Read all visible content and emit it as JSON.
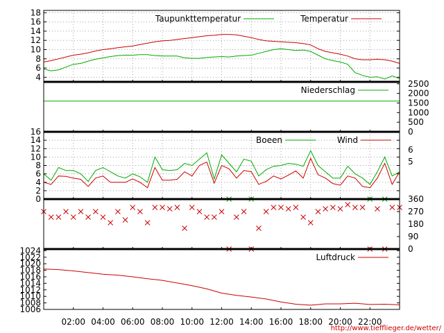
{
  "source_url": "http://www.tiefflieger.de/wetter/",
  "colors": {
    "red": "#cc0000",
    "green": "#00aa00",
    "grid": "#a0a0a0",
    "axis": "#000000"
  },
  "x_axis": {
    "tick_labels": [
      "02:00",
      "04:00",
      "06:00",
      "08:00",
      "10:00",
      "12:00",
      "14:00",
      "16:00",
      "18:00",
      "20:00",
      "22:00"
    ],
    "tick_hours": [
      2,
      4,
      6,
      8,
      10,
      12,
      14,
      16,
      18,
      20,
      22
    ],
    "range_hours": [
      0,
      24
    ]
  },
  "chart_data": [
    {
      "type": "line",
      "panel": "temperature",
      "ylim": [
        3,
        18.5
      ],
      "yticks": [
        4,
        6,
        8,
        10,
        12,
        14,
        16,
        18
      ],
      "legend_placement": "top-right",
      "grid": true,
      "series": [
        {
          "name": "Temperatur",
          "color": "red",
          "x": [
            0,
            0.5,
            1,
            1.5,
            2,
            2.5,
            3,
            3.5,
            4,
            4.5,
            5,
            5.5,
            6,
            6.5,
            7,
            7.5,
            8,
            8.5,
            9,
            9.5,
            10,
            10.5,
            11,
            11.5,
            12,
            12.5,
            13,
            13.5,
            14,
            14.5,
            15,
            15.5,
            16,
            16.5,
            17,
            17.5,
            18,
            18.5,
            19,
            19.5,
            20,
            20.5,
            21,
            21.5,
            22,
            22.5,
            23,
            23.5,
            24
          ],
          "values": [
            7.3,
            7.6,
            8.0,
            8.4,
            8.8,
            9.0,
            9.3,
            9.7,
            10.0,
            10.2,
            10.4,
            10.6,
            10.8,
            11.1,
            11.4,
            11.7,
            11.9,
            12.0,
            12.2,
            12.4,
            12.6,
            12.8,
            13.0,
            13.1,
            13.3,
            13.3,
            13.2,
            12.9,
            12.6,
            12.2,
            11.9,
            11.8,
            11.7,
            11.6,
            11.5,
            11.3,
            11.0,
            10.2,
            9.6,
            9.3,
            9.0,
            8.6,
            8.0,
            7.8,
            7.8,
            7.9,
            7.8,
            7.5,
            7.0
          ]
        },
        {
          "name": "Taupunkttemperatur",
          "color": "green",
          "x": [
            0,
            0.5,
            1,
            1.5,
            2,
            2.5,
            3,
            3.5,
            4,
            4.5,
            5,
            5.5,
            6,
            6.5,
            7,
            7.5,
            8,
            8.5,
            9,
            9.5,
            10,
            10.5,
            11,
            11.5,
            12,
            12.5,
            13,
            13.5,
            14,
            14.5,
            15,
            15.5,
            16,
            16.5,
            17,
            17.5,
            18,
            18.5,
            19,
            19.5,
            20,
            20.5,
            21,
            21.5,
            22,
            22.5,
            23,
            23.5,
            24
          ],
          "values": [
            5.8,
            5.4,
            5.6,
            6.2,
            6.8,
            7.0,
            7.5,
            7.9,
            8.2,
            8.5,
            8.7,
            8.8,
            8.8,
            8.9,
            8.9,
            8.7,
            8.6,
            8.6,
            8.6,
            8.2,
            8.1,
            8.1,
            8.3,
            8.4,
            8.5,
            8.4,
            8.6,
            8.7,
            8.8,
            9.2,
            9.6,
            10.0,
            10.2,
            10.0,
            9.8,
            9.9,
            9.6,
            8.8,
            8.0,
            7.6,
            7.3,
            6.8,
            5.0,
            4.4,
            4.0,
            4.1,
            3.6,
            4.3,
            3.7
          ]
        }
      ]
    },
    {
      "type": "line",
      "panel": "precipitation",
      "ylim": [
        0,
        2600
      ],
      "yticks": [
        0,
        500,
        1000,
        1500,
        2000,
        2500
      ],
      "legend_placement": "top-right",
      "series": [
        {
          "name": "Niederschlag",
          "color": "green",
          "x": [
            0,
            24
          ],
          "values": [
            1600,
            1600
          ]
        }
      ]
    },
    {
      "type": "line",
      "panel": "wind",
      "ylim": [
        0,
        16
      ],
      "yticks": [
        0,
        2,
        4,
        6,
        8,
        10,
        12,
        14,
        16
      ],
      "right_tick_labels": [
        "6",
        "5"
      ],
      "legend_placement": "top-right",
      "grid": true,
      "series": [
        {
          "name": "Wind",
          "color": "red",
          "x": [
            0,
            0.5,
            1,
            1.5,
            2,
            2.5,
            3,
            3.5,
            4,
            4.5,
            5,
            5.5,
            6,
            6.5,
            7,
            7.5,
            8,
            8.5,
            9,
            9.5,
            10,
            10.5,
            11,
            11.5,
            12,
            12.5,
            13,
            13.5,
            14,
            14.5,
            15,
            15.5,
            16,
            16.5,
            17,
            17.5,
            18,
            18.5,
            19,
            19.5,
            20,
            20.5,
            21,
            21.5,
            22,
            22.5,
            23,
            23.5,
            24
          ],
          "values": [
            4.0,
            3.5,
            5.5,
            5.4,
            5.0,
            4.7,
            3.0,
            5.0,
            5.5,
            4.0,
            4.0,
            4.0,
            4.8,
            4.0,
            2.7,
            7.5,
            4.5,
            4.5,
            4.7,
            6.5,
            5.5,
            8.0,
            8.8,
            3.8,
            8.0,
            7.2,
            5.0,
            6.8,
            6.5,
            3.5,
            4.2,
            5.5,
            4.8,
            5.7,
            6.7,
            5.0,
            9.7,
            5.8,
            5.0,
            3.7,
            3.3,
            5.5,
            5.0,
            3.0,
            2.7,
            5.0,
            8.5,
            3.5,
            6.5
          ]
        },
        {
          "name": "Boeen",
          "color": "green",
          "x": [
            0,
            0.5,
            1,
            1.5,
            2,
            2.5,
            3,
            3.5,
            4,
            4.5,
            5,
            5.5,
            6,
            6.5,
            7,
            7.5,
            8,
            8.5,
            9,
            9.5,
            10,
            10.5,
            11,
            11.5,
            12,
            12.5,
            13,
            13.5,
            14,
            14.5,
            15,
            15.5,
            16,
            16.5,
            17,
            17.5,
            18,
            18.5,
            19,
            19.5,
            20,
            20.5,
            21,
            21.5,
            22,
            22.5,
            23,
            23.5,
            24
          ],
          "values": [
            6.0,
            4.5,
            7.5,
            6.8,
            6.8,
            6.0,
            4.2,
            6.8,
            7.5,
            6.5,
            5.5,
            5.0,
            6.0,
            5.3,
            4.0,
            10.0,
            7.0,
            6.8,
            7.0,
            8.5,
            8.0,
            9.5,
            11.0,
            4.8,
            10.5,
            8.5,
            6.5,
            9.5,
            9.0,
            5.5,
            7.0,
            7.8,
            8.0,
            8.5,
            8.3,
            7.8,
            11.5,
            8.0,
            6.5,
            5.0,
            5.0,
            7.8,
            6.0,
            5.0,
            3.5,
            6.5,
            10.0,
            5.5,
            6.5
          ]
        }
      ]
    },
    {
      "type": "scatter",
      "panel": "wind-direction",
      "ylim": [
        0,
        360
      ],
      "yticks": [
        0,
        90,
        180,
        270,
        360
      ],
      "series": [
        {
          "name": "",
          "color": "red",
          "x": [
            0,
            0.5,
            1,
            1.5,
            2,
            2.5,
            3,
            3.5,
            4,
            4.5,
            5,
            5.5,
            6,
            6.5,
            7,
            7.5,
            8,
            8.5,
            9,
            9.5,
            10,
            10.5,
            11,
            11.5,
            12,
            12.5,
            13,
            13.5,
            14,
            14.5,
            15,
            15.5,
            16,
            16.5,
            17,
            17.5,
            18,
            18.5,
            19,
            19.5,
            20,
            20.5,
            21,
            21.5,
            22,
            22.5,
            23,
            23.5,
            24
          ],
          "values": [
            270,
            230,
            230,
            270,
            230,
            270,
            230,
            270,
            230,
            190,
            270,
            210,
            300,
            270,
            190,
            300,
            300,
            290,
            300,
            150,
            300,
            270,
            230,
            230,
            270,
            0,
            230,
            270,
            0,
            150,
            270,
            300,
            300,
            290,
            300,
            230,
            190,
            270,
            290,
            300,
            290,
            320,
            300,
            300,
            0,
            290,
            0,
            300,
            300
          ]
        },
        {
          "name": "",
          "color": "green",
          "x": [
            12.5,
            14,
            22,
            23
          ],
          "values": [
            360,
            360,
            360,
            360
          ]
        }
      ]
    },
    {
      "type": "line",
      "panel": "pressure",
      "ylim": [
        1006,
        1024.5
      ],
      "yticks": [
        1006,
        1008,
        1010,
        1012,
        1014,
        1016,
        1018,
        1020,
        1022,
        1024
      ],
      "legend_placement": "top-right",
      "series": [
        {
          "name": "Luftdruck",
          "color": "red",
          "x": [
            0,
            1,
            2,
            3,
            4,
            5,
            6,
            7,
            8,
            9,
            10,
            11,
            12,
            13,
            14,
            15,
            16,
            17,
            18,
            19,
            20,
            21,
            22,
            23,
            24
          ],
          "values": [
            1018.4,
            1018.2,
            1017.8,
            1017.3,
            1016.8,
            1016.5,
            1016.0,
            1015.4,
            1014.9,
            1014.1,
            1013.3,
            1012.3,
            1011.0,
            1010.3,
            1009.8,
            1009.2,
            1008.3,
            1007.6,
            1007.3,
            1007.7,
            1007.7,
            1007.9,
            1007.5,
            1007.6,
            1007.4
          ]
        }
      ]
    }
  ]
}
